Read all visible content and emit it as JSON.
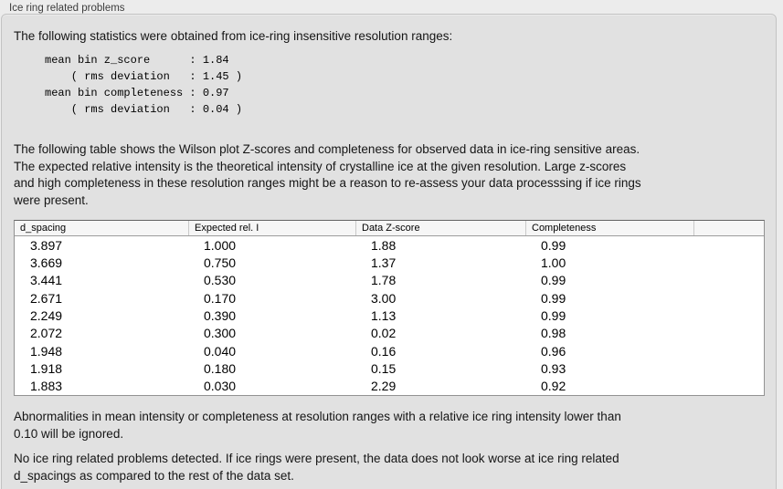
{
  "panel": {
    "title": "Ice ring related problems"
  },
  "intro": "The following statistics were obtained from ice-ring insensitive resolution ranges:",
  "stats_block": "mean bin z_score      : 1.84\n    ( rms deviation   : 1.45 )\nmean bin completeness : 0.97\n    ( rms deviation   : 0.04 )",
  "stats": {
    "mean_bin_z_score": "1.84",
    "z_score_rms_deviation": "1.45",
    "mean_bin_completeness": "0.97",
    "completeness_rms_deviation": "0.04"
  },
  "table_description": {
    "lines": [
      "The following table shows the Wilson plot Z-scores and completeness for observed data in ice-ring sensitive areas.",
      "The expected relative intensity is the theoretical intensity of crystalline ice at the given resolution. Large z-scores",
      "and high completeness in these resolution ranges might be a reason to re-assess your data processsing if ice rings",
      "were present."
    ]
  },
  "table": {
    "columns": [
      "d_spacing",
      "Expected rel. I",
      "Data Z-score",
      "Completeness"
    ],
    "rows": [
      [
        "3.897",
        "1.000",
        "1.88",
        "0.99"
      ],
      [
        "3.669",
        "0.750",
        "1.37",
        "1.00"
      ],
      [
        "3.441",
        "0.530",
        "1.78",
        "0.99"
      ],
      [
        "2.671",
        "0.170",
        "3.00",
        "0.99"
      ],
      [
        "2.249",
        "0.390",
        "1.13",
        "0.99"
      ],
      [
        "2.072",
        "0.300",
        "0.02",
        "0.98"
      ],
      [
        "1.948",
        "0.040",
        "0.16",
        "0.96"
      ],
      [
        "1.918",
        "0.180",
        "0.15",
        "0.93"
      ],
      [
        "1.883",
        "0.030",
        "2.29",
        "0.92"
      ]
    ]
  },
  "notes": {
    "abnormalities": {
      "lines": [
        "Abnormalities in mean intensity or completeness at resolution ranges with a relative ice ring intensity lower than",
        "0.10 will be ignored."
      ]
    },
    "conclusion": {
      "lines": [
        "No ice ring related problems detected. If ice rings were present, the data does not look worse at ice ring related",
        "d_spacings as compared to the rest of the data set."
      ]
    }
  },
  "colors": {
    "window_bg": "#ececec",
    "box_bg": "#e1e1e1",
    "box_border": "#c3c3c3",
    "table_bg": "#ffffff",
    "table_header_bg": "#f6f6f6",
    "table_border": "#929292",
    "header_divider": "#c9c9c9"
  }
}
